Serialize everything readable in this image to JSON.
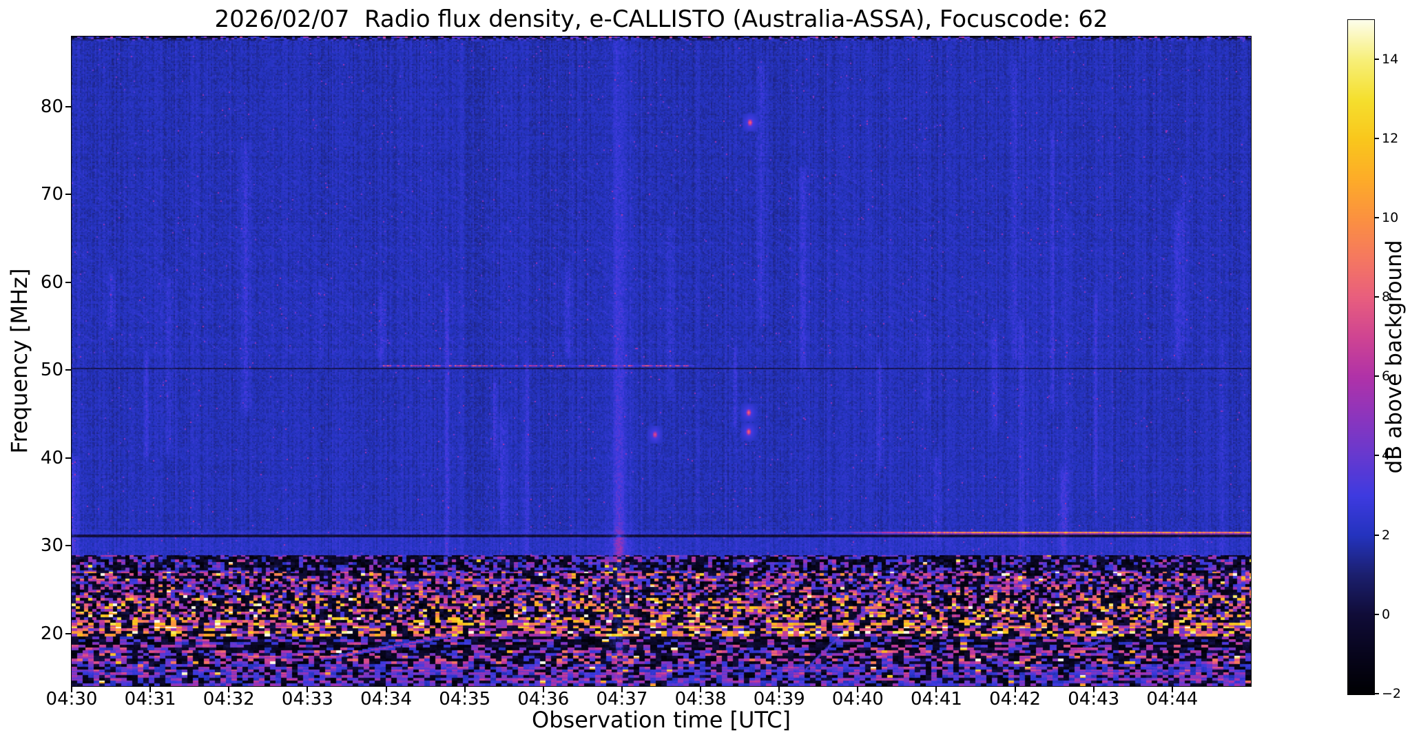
{
  "chart_data": {
    "type": "heatmap",
    "title": "2026/02/07  Radio flux density, e-CALLISTO (Australia-ASSA), Focuscode: 62",
    "xlabel": "Observation time [UTC]",
    "ylabel": "Frequency [MHz]",
    "x_ticks": [
      "04:30",
      "04:31",
      "04:32",
      "04:33",
      "04:34",
      "04:35",
      "04:36",
      "04:37",
      "04:38",
      "04:39",
      "04:40",
      "04:41",
      "04:42",
      "04:43",
      "04:44"
    ],
    "xlim": [
      "04:30:00",
      "04:45:00"
    ],
    "y_ticks": [
      20,
      30,
      40,
      50,
      60,
      70,
      80
    ],
    "ylim": [
      14,
      88
    ],
    "colorbar": {
      "label": "dB above background",
      "ticks": [
        -2,
        0,
        2,
        4,
        6,
        8,
        10,
        12,
        14
      ],
      "range": [
        -2,
        15
      ]
    },
    "background_db": 1.9,
    "noise_sigma_db": 0.38,
    "colormap_stops": [
      [
        -2,
        "#000003"
      ],
      [
        -1,
        "#07051c"
      ],
      [
        0,
        "#100c38"
      ],
      [
        1,
        "#1b1f6e"
      ],
      [
        2,
        "#2433be"
      ],
      [
        3,
        "#3e3ae0"
      ],
      [
        4,
        "#6639cf"
      ],
      [
        5,
        "#8c35bd"
      ],
      [
        6,
        "#b032a8"
      ],
      [
        7,
        "#cf4492"
      ],
      [
        8,
        "#e85e7e"
      ],
      [
        9,
        "#f57860"
      ],
      [
        10,
        "#fb9140"
      ],
      [
        11,
        "#fdac28"
      ],
      [
        12,
        "#f9c71c"
      ],
      [
        13,
        "#f5df2e"
      ],
      [
        14,
        "#f7ef79"
      ],
      [
        15,
        "#fdfdea"
      ]
    ],
    "features": [
      {
        "id": "rfi-speckle-band",
        "type": "speckle_band",
        "freq_max_mhz": 28.8
      },
      {
        "id": "top-edge-band",
        "type": "top_band",
        "rows": 3
      },
      {
        "id": "dark-line-31",
        "type": "dark_line",
        "freq_mhz": 31.15,
        "level_db": 0.1,
        "rows": 2
      },
      {
        "id": "dark-line-50",
        "type": "dark_line",
        "freq_mhz": 50.1,
        "level_db": 0.5,
        "rows": 1
      },
      {
        "id": "bright-line-31",
        "type": "bright_line",
        "freq_mhz": 31.45,
        "time_start": "04:39:30",
        "time_full": "04:41:20",
        "time_end": "04:45:00",
        "level_db": 9.5
      },
      {
        "id": "dotted-line-50",
        "type": "dotted_line",
        "freq_mhz": 50.5,
        "time_start": "04:33:55",
        "time_end": "04:37:55",
        "level_db": 7
      },
      {
        "id": "main-streak",
        "type": "vertical_streak",
        "time": "04:36:58",
        "level_db": 5
      },
      {
        "id": "blob-78",
        "type": "blob",
        "time": "04:38:38",
        "freq_mhz": 78.2,
        "level_db": 8.5
      },
      {
        "id": "blob-45",
        "type": "blob",
        "time": "04:38:37",
        "freq_mhz": 45.1,
        "level_db": 8.5
      },
      {
        "id": "blob-43",
        "type": "blob",
        "time": "04:38:37",
        "freq_mhz": 42.9,
        "level_db": 8.5
      },
      {
        "id": "blob-42",
        "type": "blob",
        "time": "04:37:25",
        "freq_mhz": 42.6,
        "level_db": 7.5
      },
      {
        "id": "drift-1",
        "type": "drift_line",
        "time0": "04:33:10",
        "freq0_mhz": 17.0,
        "time1": "04:34:55",
        "freq1_mhz": 19.8,
        "level_db": 6
      },
      {
        "id": "drift-2",
        "type": "drift_line",
        "time0": "04:39:15",
        "freq0_mhz": 15.0,
        "time1": "04:40:40",
        "freq1_mhz": 27.5,
        "level_db": 4.5
      },
      {
        "id": "drift-3",
        "type": "drift_line",
        "time0": "04:42:50",
        "freq0_mhz": 18.0,
        "time1": "04:43:55",
        "freq1_mhz": 22.5,
        "level_db": 4
      }
    ]
  }
}
